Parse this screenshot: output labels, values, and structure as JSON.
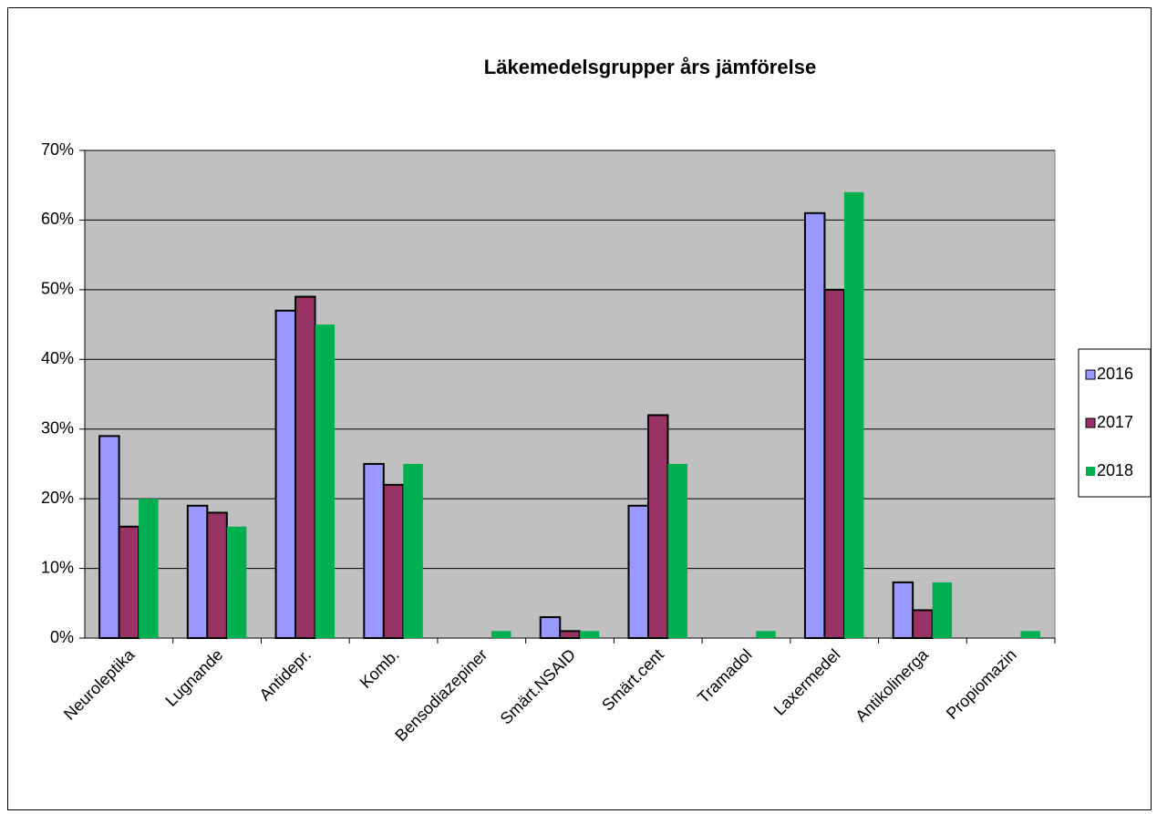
{
  "chart_data": {
    "type": "bar",
    "title": "Läkemedelsgrupper års jämförelse",
    "categories": [
      "Neuroleptika",
      "Lugnande",
      "Antidepr.",
      "Komb.",
      "Bensodiazepiner",
      "Smärt.NSAID",
      "Smärt.cent",
      "Tramadol",
      "Laxermedel",
      "Antikolinerga",
      "Propiomazin"
    ],
    "series": [
      {
        "name": "2016",
        "color": "#9999ff",
        "values": [
          29,
          19,
          47,
          25,
          0,
          3,
          19,
          0,
          61,
          8,
          0
        ]
      },
      {
        "name": "2017",
        "color": "#993366",
        "values": [
          16,
          18,
          49,
          22,
          0,
          1,
          32,
          0,
          50,
          4,
          0
        ]
      },
      {
        "name": "2018",
        "color": "#00b050",
        "values": [
          20,
          16,
          45,
          25,
          1,
          1,
          25,
          1,
          64,
          8,
          1
        ]
      }
    ],
    "ylim": [
      0,
      70
    ],
    "yticks": [
      {
        "value": 0,
        "label": "0%"
      },
      {
        "value": 10,
        "label": "10%"
      },
      {
        "value": 20,
        "label": "20%"
      },
      {
        "value": 30,
        "label": "30%"
      },
      {
        "value": 40,
        "label": "40%"
      },
      {
        "value": 50,
        "label": "50%"
      },
      {
        "value": 60,
        "label": "60%"
      },
      {
        "value": 70,
        "label": "70%"
      }
    ],
    "grid": true,
    "legend": "right",
    "plot_background": "#c0c0c0"
  }
}
